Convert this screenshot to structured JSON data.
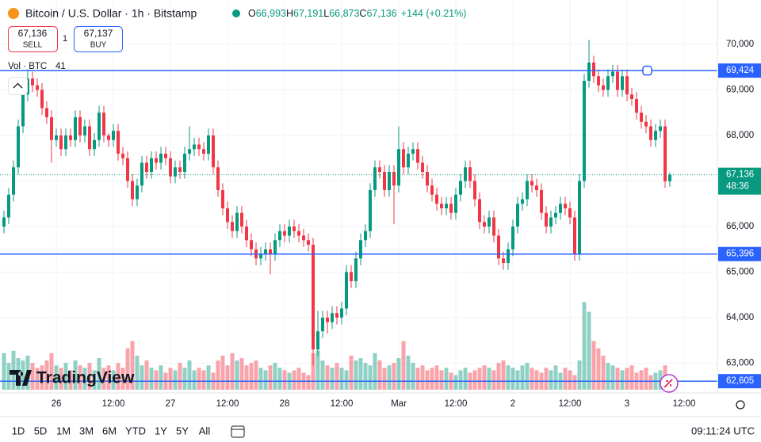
{
  "header": {
    "symbol": "Bitcoin / U.S. Dollar · 1h · Bitstamp",
    "ohlc": [
      {
        "label": "O",
        "value": "66,993"
      },
      {
        "label": "H",
        "value": "67,191"
      },
      {
        "label": "L",
        "value": "66,873"
      },
      {
        "label": "C",
        "value": "67,136"
      }
    ],
    "change": "+144 (+0.21%)",
    "sell": {
      "price": "67,136",
      "label": "SELL"
    },
    "quantity": "1",
    "buy": {
      "price": "67,137",
      "label": "BUY"
    },
    "volume_label": "Vol · BTC",
    "volume_value": "41"
  },
  "chart_data": {
    "type": "candlestick",
    "up_color": "#089981",
    "down_color": "#f23645",
    "grid": true,
    "open": [
      66000,
      66200,
      66700,
      67300,
      68200,
      68900,
      69250,
      69100,
      69000,
      68600,
      68400,
      67900,
      68000,
      67700,
      68000,
      67900,
      68400,
      68000,
      68200,
      67700,
      67900,
      68500,
      68000,
      67900,
      68100,
      67600,
      67500,
      67000,
      66600,
      66900,
      67400,
      67200,
      67500,
      67400,
      67600,
      67500,
      67100,
      67300,
      67200,
      67600,
      67700,
      67800,
      67700,
      67600,
      68000,
      67300,
      66800,
      66400,
      66100,
      65900,
      66300,
      66000,
      65700,
      65500,
      65300,
      65400,
      65500,
      65400,
      65700,
      65900,
      65800,
      66000,
      65900,
      65800,
      65700,
      65600,
      63300,
      63700,
      64000,
      63900,
      64100,
      64000,
      64200,
      65000,
      64800,
      65300,
      65700,
      65900,
      66800,
      67300,
      67200,
      66800,
      67200,
      66900,
      67700,
      67300,
      67600,
      67700,
      67400,
      67200,
      66900,
      66700,
      66500,
      66400,
      66500,
      66300,
      66700,
      67000,
      67300,
      67000,
      66600,
      66100,
      66000,
      66200,
      65800,
      65300,
      65200,
      65500,
      66000,
      66500,
      66600,
      67000,
      66900,
      66800,
      66300,
      66000,
      66200,
      66300,
      66500,
      66400,
      66200,
      65400,
      67000,
      69200,
      69600,
      69300,
      69100,
      69000,
      69300,
      69400,
      69000,
      69300,
      68900,
      68800,
      68500,
      68300,
      68200,
      67900,
      68100,
      68200,
      66993
    ],
    "high": [
      66350,
      66850,
      67450,
      68350,
      69050,
      69450,
      69400,
      69250,
      69150,
      68750,
      68550,
      68150,
      68150,
      68150,
      68150,
      68550,
      68550,
      68350,
      68350,
      68050,
      68650,
      68650,
      68050,
      68250,
      68250,
      67750,
      67650,
      67150,
      67050,
      67550,
      67550,
      67650,
      67650,
      67750,
      67750,
      67650,
      67450,
      67450,
      67750,
      68200,
      67950,
      67950,
      67850,
      68150,
      68150,
      67450,
      66950,
      66550,
      66250,
      66450,
      66450,
      66150,
      65850,
      65650,
      65550,
      65650,
      65650,
      65850,
      66050,
      66050,
      66150,
      66150,
      66050,
      65950,
      65850,
      65750,
      64150,
      64150,
      64150,
      64250,
      64250,
      64350,
      65150,
      65150,
      65450,
      65850,
      66050,
      66950,
      67450,
      67450,
      67350,
      67350,
      67350,
      68200,
      67850,
      67750,
      67850,
      67850,
      67550,
      67350,
      67050,
      66850,
      66650,
      66650,
      66650,
      66850,
      67150,
      67450,
      67450,
      67150,
      66750,
      66250,
      66350,
      66350,
      65950,
      65450,
      65650,
      66150,
      66650,
      66750,
      67150,
      67150,
      67050,
      66950,
      66450,
      66350,
      66450,
      66650,
      66650,
      66550,
      66350,
      67150,
      69350,
      70100,
      69750,
      69450,
      69250,
      69450,
      69550,
      69550,
      69450,
      69450,
      69050,
      68950,
      68650,
      68450,
      68350,
      68250,
      68350,
      68350,
      67191
    ],
    "low": [
      65850,
      66050,
      66550,
      67150,
      68050,
      68750,
      68950,
      68850,
      68450,
      68250,
      67400,
      67750,
      67550,
      67550,
      67750,
      67750,
      67850,
      67850,
      67550,
      67550,
      67750,
      67850,
      67750,
      67750,
      67450,
      67350,
      66850,
      66450,
      66450,
      66750,
      67050,
      67050,
      67250,
      67250,
      67350,
      66950,
      66950,
      67050,
      67050,
      67450,
      67550,
      67550,
      67450,
      67450,
      67150,
      66650,
      66250,
      65950,
      65750,
      65750,
      65850,
      65550,
      65350,
      65150,
      65150,
      65250,
      64950,
      65250,
      65550,
      65650,
      65650,
      65750,
      65650,
      65550,
      65450,
      62950,
      63150,
      63550,
      63650,
      63750,
      63850,
      63850,
      64050,
      64650,
      64650,
      65150,
      65550,
      65750,
      66650,
      67050,
      66650,
      66650,
      66050,
      66750,
      67150,
      67150,
      67450,
      67250,
      67050,
      66750,
      66550,
      66350,
      66250,
      66250,
      66150,
      66150,
      66550,
      66850,
      66850,
      66450,
      65950,
      65850,
      65850,
      65650,
      65150,
      65050,
      65050,
      65350,
      65850,
      66350,
      66450,
      66750,
      66650,
      66150,
      65850,
      65850,
      66050,
      66150,
      66250,
      66050,
      65250,
      65250,
      66850,
      69050,
      69150,
      68950,
      68850,
      68850,
      69150,
      68850,
      68850,
      68750,
      68650,
      68350,
      68150,
      68050,
      67750,
      67750,
      67950,
      66850,
      66873
    ],
    "close": [
      66200,
      66700,
      67300,
      68200,
      68900,
      69250,
      69100,
      69000,
      68600,
      68400,
      67900,
      68000,
      67700,
      68000,
      67900,
      68400,
      68000,
      68200,
      67700,
      67900,
      68500,
      68000,
      67900,
      68100,
      67600,
      67500,
      67000,
      66600,
      66900,
      67400,
      67200,
      67500,
      67400,
      67600,
      67500,
      67100,
      67300,
      67200,
      67600,
      67700,
      67800,
      67700,
      67600,
      68000,
      67300,
      66800,
      66400,
      66100,
      65900,
      66300,
      66000,
      65700,
      65500,
      65300,
      65400,
      65500,
      65400,
      65700,
      65900,
      65800,
      66000,
      65900,
      65800,
      65700,
      65600,
      63300,
      63700,
      64000,
      63900,
      64100,
      64000,
      64200,
      65000,
      64800,
      65300,
      65700,
      65900,
      66800,
      67300,
      67200,
      66800,
      67200,
      66900,
      67700,
      67300,
      67600,
      67700,
      67400,
      67200,
      66900,
      66700,
      66500,
      66400,
      66500,
      66300,
      66700,
      67000,
      67300,
      67000,
      66600,
      66100,
      66000,
      66200,
      65800,
      65300,
      65200,
      65500,
      66000,
      66500,
      66600,
      67000,
      66900,
      66800,
      66300,
      66000,
      66200,
      66300,
      66500,
      66400,
      66200,
      65400,
      67000,
      69200,
      69600,
      69300,
      69100,
      69000,
      69300,
      69400,
      69000,
      69300,
      68900,
      68800,
      68500,
      68300,
      68200,
      67900,
      68100,
      68200,
      66993,
      67136
    ],
    "volumes": [
      150,
      110,
      160,
      130,
      120,
      140,
      110,
      90,
      100,
      120,
      150,
      100,
      90,
      110,
      80,
      120,
      100,
      90,
      110,
      80,
      130,
      90,
      100,
      80,
      110,
      90,
      170,
      200,
      140,
      100,
      120,
      90,
      80,
      100,
      70,
      90,
      80,
      110,
      90,
      120,
      80,
      90,
      80,
      100,
      70,
      120,
      140,
      100,
      150,
      120,
      130,
      100,
      110,
      120,
      90,
      80,
      100,
      110,
      90,
      80,
      70,
      80,
      90,
      70,
      60,
      150,
      160,
      120,
      100,
      90,
      110,
      90,
      80,
      140,
      120,
      130,
      110,
      100,
      150,
      120,
      90,
      100,
      110,
      130,
      200,
      140,
      110,
      90,
      100,
      80,
      90,
      100,
      80,
      90,
      70,
      60,
      80,
      90,
      70,
      80,
      90,
      100,
      90,
      80,
      110,
      120,
      100,
      90,
      80,
      100,
      110,
      90,
      80,
      70,
      90,
      80,
      100,
      70,
      90,
      80,
      60,
      120,
      360,
      320,
      200,
      170,
      140,
      110,
      100,
      90,
      80,
      90,
      100,
      70,
      80,
      90,
      60,
      70,
      80,
      100,
      41
    ],
    "ylim": [
      62417,
      70974
    ],
    "yticks": [
      {
        "value": 63000,
        "label": "63,000"
      },
      {
        "value": 64000,
        "label": "64,000"
      },
      {
        "value": 65000,
        "label": "65,000"
      },
      {
        "value": 66000,
        "label": "66,000"
      },
      {
        "value": 67000,
        "label": "67,000"
      },
      {
        "value": 68000,
        "label": "68,000"
      },
      {
        "value": 69000,
        "label": "69,000"
      },
      {
        "value": 70000,
        "label": "70,000"
      }
    ],
    "y2lim": [
      0,
      1600
    ],
    "xticks": [
      "26",
      "12:00",
      "27",
      "12:00",
      "28",
      "12:00",
      "Mar",
      "12:00",
      "2",
      "12:00",
      "3",
      "12:00"
    ],
    "levels": [
      {
        "value": 69424,
        "label": "69,424",
        "color": "#2962ff"
      },
      {
        "value": 65396,
        "label": "65,396",
        "color": "#2962ff"
      },
      {
        "value": 62605,
        "label": "62,605",
        "color": "#2962ff"
      }
    ],
    "last_price": {
      "value": 67136,
      "label": "67,136",
      "countdown": "48:36"
    }
  },
  "toolbar": {
    "ranges": [
      "1D",
      "5D",
      "1M",
      "3M",
      "6M",
      "YTD",
      "1Y",
      "5Y",
      "All"
    ],
    "clock": "09:11:24 UTC"
  },
  "brand": "TradingView"
}
